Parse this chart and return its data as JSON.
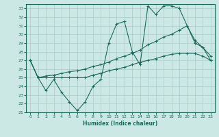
{
  "xlabel": "Humidex (Indice chaleur)",
  "background_color": "#cce8e4",
  "plot_bg_color": "#cce8e4",
  "grid_color": "#aacccc",
  "line_color": "#1a6b5a",
  "xlim": [
    -0.5,
    23.5
  ],
  "ylim": [
    21,
    33.5
  ],
  "yticks": [
    21,
    22,
    23,
    24,
    25,
    26,
    27,
    28,
    29,
    30,
    31,
    32,
    33
  ],
  "xticks": [
    0,
    1,
    2,
    3,
    4,
    5,
    6,
    7,
    8,
    9,
    10,
    11,
    12,
    13,
    14,
    15,
    16,
    17,
    18,
    19,
    20,
    21,
    22,
    23
  ],
  "line1_x": [
    0,
    1,
    2,
    3,
    4,
    5,
    6,
    7,
    8,
    9,
    10,
    11,
    12,
    13,
    14,
    15,
    16,
    17,
    18,
    19,
    20,
    21,
    22,
    23
  ],
  "line1_y": [
    27.0,
    25.0,
    23.5,
    24.8,
    23.3,
    22.2,
    21.2,
    22.2,
    24.0,
    24.8,
    29.0,
    31.2,
    31.5,
    28.0,
    26.5,
    33.3,
    32.3,
    33.3,
    33.3,
    33.0,
    31.0,
    29.3,
    28.5,
    27.0
  ],
  "line2_x": [
    0,
    1,
    2,
    3,
    4,
    5,
    6,
    7,
    8,
    9,
    10,
    11,
    12,
    13,
    14,
    15,
    16,
    17,
    18,
    19,
    20,
    21,
    22,
    23
  ],
  "line2_y": [
    27.0,
    25.0,
    25.0,
    25.0,
    25.0,
    25.0,
    25.0,
    25.0,
    25.3,
    25.5,
    25.8,
    26.0,
    26.2,
    26.5,
    26.8,
    27.0,
    27.2,
    27.5,
    27.7,
    27.8,
    27.8,
    27.8,
    27.5,
    27.0
  ],
  "line3_x": [
    0,
    1,
    2,
    3,
    4,
    5,
    6,
    7,
    8,
    9,
    10,
    11,
    12,
    13,
    14,
    15,
    16,
    17,
    18,
    19,
    20,
    21,
    22,
    23
  ],
  "line3_y": [
    27.0,
    25.0,
    25.2,
    25.3,
    25.5,
    25.7,
    25.8,
    26.0,
    26.3,
    26.5,
    26.8,
    27.2,
    27.5,
    27.8,
    28.2,
    28.8,
    29.2,
    29.7,
    30.0,
    30.5,
    31.0,
    29.0,
    28.5,
    27.5
  ]
}
